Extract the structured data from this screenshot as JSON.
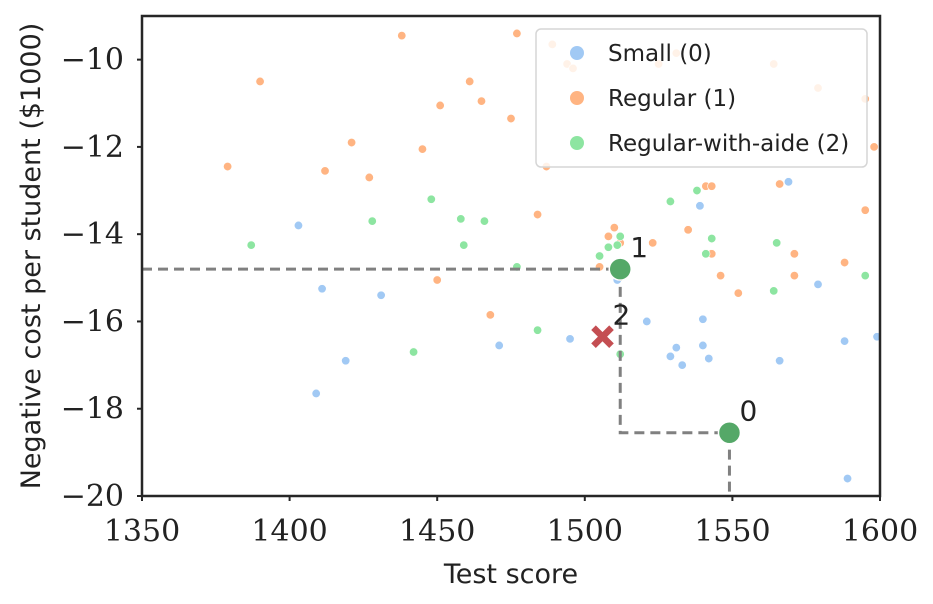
{
  "chart_data": {
    "type": "scatter",
    "title": "",
    "xlabel": "Test score",
    "ylabel": "Negative cost per student ($1000)",
    "xlim": [
      1350,
      1600
    ],
    "ylim": [
      -20,
      -9
    ],
    "xticks": [
      1350,
      1400,
      1450,
      1500,
      1550,
      1600
    ],
    "yticks": [
      -20,
      -18,
      -16,
      -14,
      -12,
      -10
    ],
    "xtick_labels": [
      "1350",
      "1400",
      "1450",
      "1500",
      "1550",
      "1600"
    ],
    "ytick_labels": [
      "−20",
      "−18",
      "−16",
      "−14",
      "−12",
      "−10"
    ],
    "grid": false,
    "legend_position": "top-right",
    "series": [
      {
        "name": "Small (0)",
        "color": "#a1c9f4",
        "points": [
          [
            1403,
            -13.8
          ],
          [
            1411,
            -15.25
          ],
          [
            1409,
            -17.65
          ],
          [
            1419,
            -16.9
          ],
          [
            1431,
            -15.4
          ],
          [
            1471,
            -16.55
          ],
          [
            1495,
            -16.4
          ],
          [
            1511,
            -15.05
          ],
          [
            1521,
            -16.0
          ],
          [
            1529,
            -16.8
          ],
          [
            1531,
            -16.6
          ],
          [
            1533,
            -17.0
          ],
          [
            1540,
            -15.95
          ],
          [
            1540,
            -16.55
          ],
          [
            1542,
            -16.85
          ],
          [
            1539,
            -13.35
          ],
          [
            1566,
            -16.9
          ],
          [
            1569,
            -12.8
          ],
          [
            1579,
            -15.15
          ],
          [
            1588,
            -16.45
          ],
          [
            1589,
            -19.6
          ],
          [
            1599,
            -16.35
          ]
        ]
      },
      {
        "name": "Regular (1)",
        "color": "#ffb482",
        "points": [
          [
            1379,
            -12.45
          ],
          [
            1390,
            -10.5
          ],
          [
            1412,
            -12.55
          ],
          [
            1421,
            -11.9
          ],
          [
            1427,
            -12.7
          ],
          [
            1438,
            -9.45
          ],
          [
            1445,
            -12.05
          ],
          [
            1450,
            -15.05
          ],
          [
            1451,
            -11.05
          ],
          [
            1461,
            -10.5
          ],
          [
            1465,
            -10.95
          ],
          [
            1468,
            -15.85
          ],
          [
            1475,
            -11.35
          ],
          [
            1477,
            -9.4
          ],
          [
            1484,
            -13.55
          ],
          [
            1487,
            -12.45
          ],
          [
            1489,
            -9.65
          ],
          [
            1494,
            -10.1
          ],
          [
            1496,
            -10.2
          ],
          [
            1505,
            -14.75
          ],
          [
            1508,
            -14.05
          ],
          [
            1510,
            -13.85
          ],
          [
            1512,
            -14.2
          ],
          [
            1523,
            -14.2
          ],
          [
            1525,
            -10.1
          ],
          [
            1531,
            -9.85
          ],
          [
            1535,
            -13.9
          ],
          [
            1541,
            -12.9
          ],
          [
            1543,
            -12.9
          ],
          [
            1543,
            -14.45
          ],
          [
            1546,
            -14.95
          ],
          [
            1552,
            -15.35
          ],
          [
            1564,
            -10.1
          ],
          [
            1566,
            -12.85
          ],
          [
            1571,
            -14.45
          ],
          [
            1571,
            -14.95
          ],
          [
            1579,
            -10.65
          ],
          [
            1588,
            -14.65
          ],
          [
            1595,
            -10.9
          ],
          [
            1595,
            -13.45
          ],
          [
            1598,
            -12.0
          ]
        ]
      },
      {
        "name": "Regular-with-aide (2)",
        "color": "#8de5a1",
        "points": [
          [
            1387,
            -14.25
          ],
          [
            1428,
            -13.7
          ],
          [
            1442,
            -16.7
          ],
          [
            1448,
            -13.2
          ],
          [
            1458,
            -13.65
          ],
          [
            1459,
            -14.25
          ],
          [
            1466,
            -13.7
          ],
          [
            1477,
            -14.75
          ],
          [
            1484,
            -16.2
          ],
          [
            1505,
            -14.5
          ],
          [
            1508,
            -14.3
          ],
          [
            1511,
            -14.25
          ],
          [
            1512,
            -14.05
          ],
          [
            1512,
            -16.75
          ],
          [
            1529,
            -13.25
          ],
          [
            1538,
            -13.0
          ],
          [
            1541,
            -14.45
          ],
          [
            1543,
            -14.1
          ],
          [
            1564,
            -15.3
          ],
          [
            1565,
            -14.2
          ],
          [
            1595,
            -14.95
          ]
        ]
      }
    ],
    "highlighted_points": [
      {
        "label": "0",
        "x": 1549,
        "y": -18.55,
        "marker": "circle",
        "color": "#55a868"
      },
      {
        "label": "1",
        "x": 1512,
        "y": -14.8,
        "marker": "circle",
        "color": "#55a868"
      },
      {
        "label": "2",
        "x": 1506,
        "y": -16.35,
        "marker": "x",
        "color": "#c44e52"
      }
    ],
    "pareto_frontier": {
      "color": "#808080",
      "points": [
        [
          1350,
          -14.8
        ],
        [
          1512,
          -14.8
        ],
        [
          1512,
          -18.55
        ],
        [
          1549,
          -18.55
        ],
        [
          1549,
          -20
        ]
      ]
    }
  }
}
